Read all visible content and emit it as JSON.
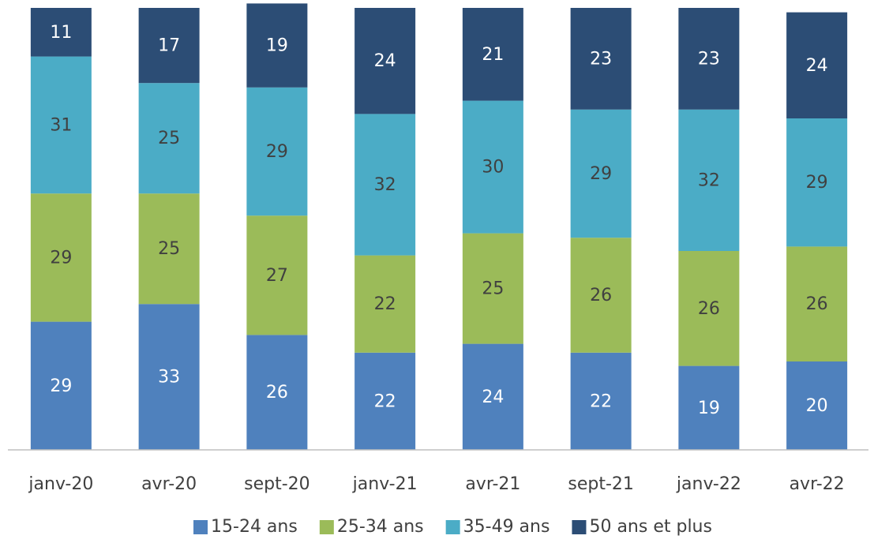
{
  "chart_data": {
    "type": "bar",
    "stacked": true,
    "categories": [
      "janv-20",
      "avr-20",
      "sept-20",
      "janv-21",
      "avr-21",
      "sept-21",
      "janv-22",
      "avr-22"
    ],
    "series": [
      {
        "name": "15-24 ans",
        "color": "#4f81bd",
        "label_color": "#ffffff",
        "values": [
          29,
          33,
          26,
          22,
          24,
          22,
          19,
          20
        ]
      },
      {
        "name": "25-34 ans",
        "color": "#9bbb59",
        "label_color": "#404040",
        "values": [
          29,
          25,
          27,
          22,
          25,
          26,
          26,
          26
        ]
      },
      {
        "name": "35-49 ans",
        "color": "#4bacc6",
        "label_color": "#404040",
        "values": [
          31,
          25,
          29,
          32,
          30,
          29,
          32,
          29
        ]
      },
      {
        "name": "50 ans et plus",
        "color": "#2c4d75",
        "label_color": "#ffffff",
        "values": [
          11,
          17,
          19,
          24,
          21,
          23,
          23,
          24
        ]
      }
    ],
    "ylim": [
      0,
      100
    ],
    "legend": "bottom"
  }
}
